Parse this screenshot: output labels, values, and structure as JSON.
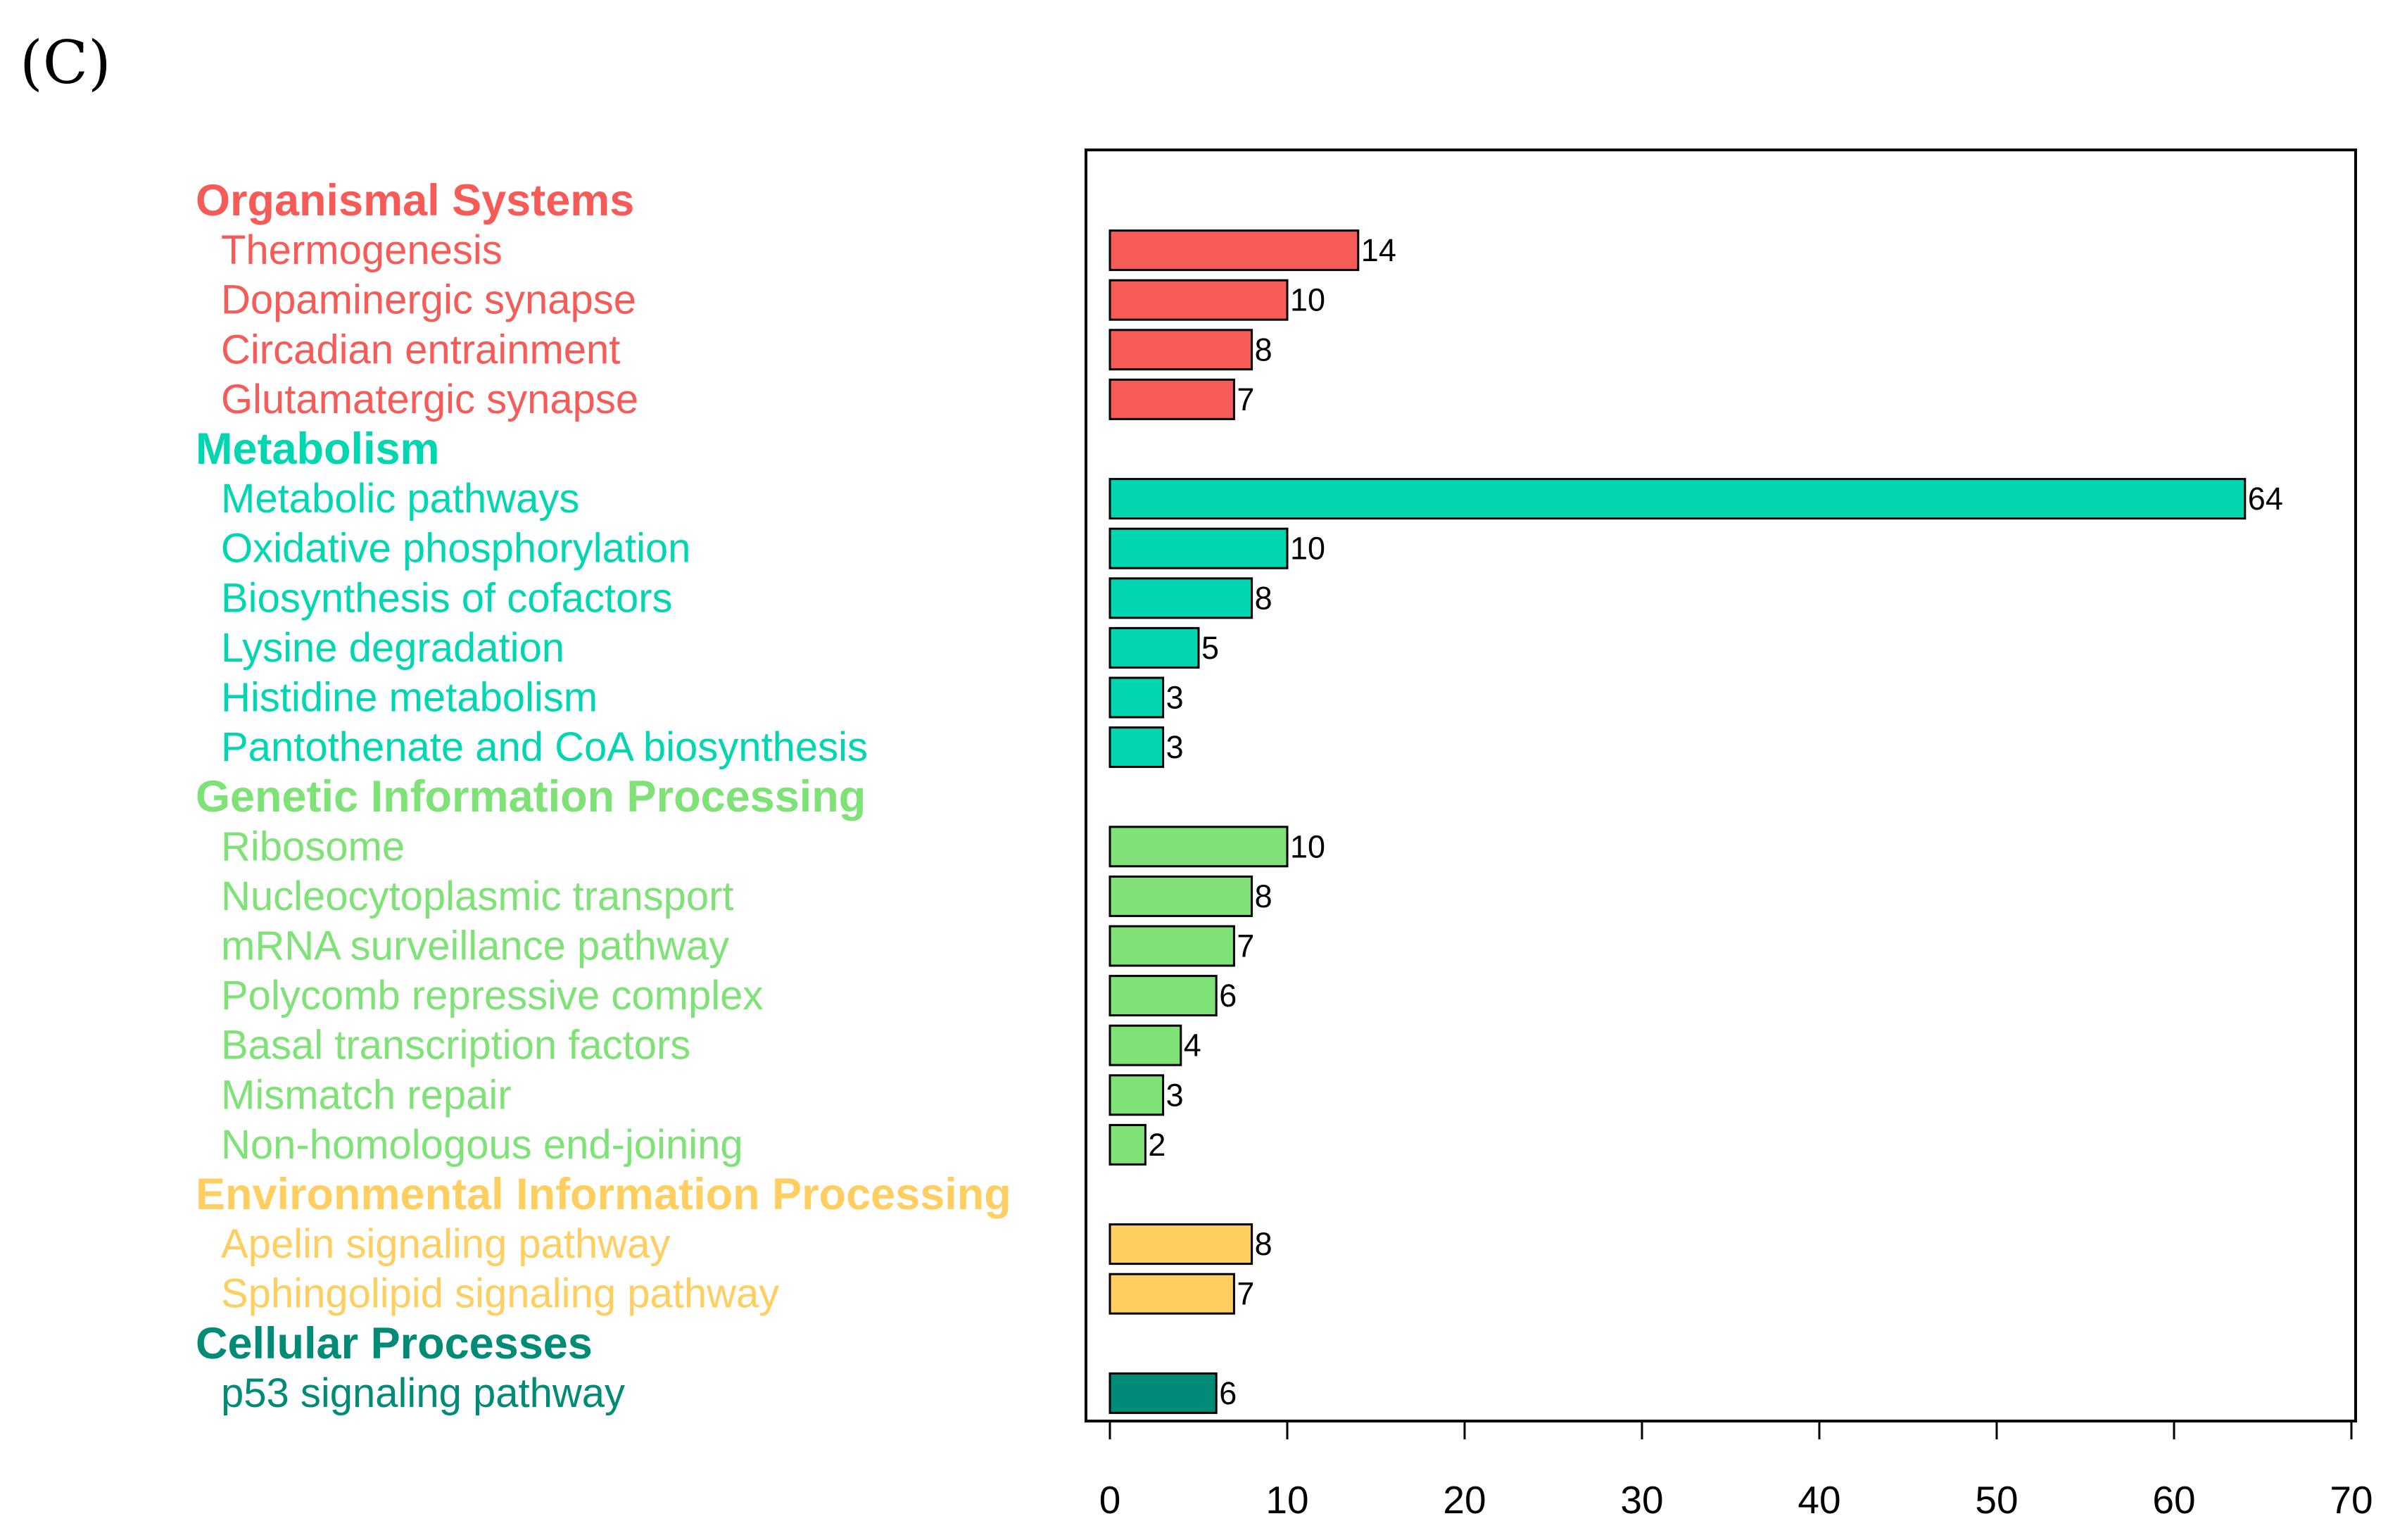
{
  "panel_label": "(C)",
  "chart_data": {
    "type": "bar",
    "orientation": "horizontal",
    "xlim": [
      0,
      70
    ],
    "xticks": [
      0,
      10,
      20,
      30,
      40,
      50,
      60,
      70
    ],
    "groups": [
      {
        "name": "Organismal Systems",
        "color": "#F65B57",
        "items": [
          {
            "label": "Thermogenesis",
            "value": 14
          },
          {
            "label": "Dopaminergic synapse",
            "value": 10
          },
          {
            "label": "Circadian entrainment",
            "value": 8
          },
          {
            "label": "Glutamatergic synapse",
            "value": 7
          }
        ]
      },
      {
        "name": "Metabolism",
        "color": "#00D7B1",
        "items": [
          {
            "label": "Metabolic pathways",
            "value": 64
          },
          {
            "label": "Oxidative phosphorylation",
            "value": 10
          },
          {
            "label": "Biosynthesis of cofactors",
            "value": 8
          },
          {
            "label": "Lysine degradation",
            "value": 5
          },
          {
            "label": "Histidine metabolism",
            "value": 3
          },
          {
            "label": "Pantothenate and CoA biosynthesis",
            "value": 3
          }
        ]
      },
      {
        "name": "Genetic Information Processing",
        "color": "#7EE276",
        "items": [
          {
            "label": "Ribosome",
            "value": 10
          },
          {
            "label": "Nucleocytoplasmic transport",
            "value": 8
          },
          {
            "label": "mRNA surveillance pathway",
            "value": 7
          },
          {
            "label": "Polycomb repressive complex",
            "value": 6
          },
          {
            "label": "Basal transcription factors",
            "value": 4
          },
          {
            "label": "Mismatch repair",
            "value": 3
          },
          {
            "label": "Non-homologous end-joining",
            "value": 2
          }
        ]
      },
      {
        "name": "Environmental Information Processing",
        "color": "#FECF60",
        "items": [
          {
            "label": "Apelin signaling pathway",
            "value": 8
          },
          {
            "label": "Sphingolipid signaling pathway",
            "value": 7
          }
        ]
      },
      {
        "name": "Cellular Processes",
        "color": "#008B76",
        "items": [
          {
            "label": "p53 signaling pathway",
            "value": 6
          }
        ]
      }
    ]
  }
}
